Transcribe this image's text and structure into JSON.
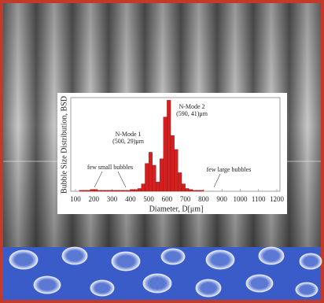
{
  "chart_data": {
    "type": "histogram",
    "xlabel": "Diameter, D[μm]",
    "ylabel": "Bubble Size Distribution, BSD",
    "annotations": [
      "N-Mode 1",
      "(500, 29)μm",
      "N-Mode 2",
      "(590, 41)μm",
      "few small bubbles",
      "few large bubbles"
    ],
    "bins": [
      100,
      120,
      140,
      160,
      180,
      200,
      220,
      240,
      260,
      280,
      300,
      320,
      340,
      360,
      380,
      400,
      420,
      440,
      460,
      480,
      500,
      520,
      540,
      560,
      580,
      600,
      620,
      640,
      660,
      680,
      700,
      720,
      740,
      760,
      780,
      800
    ],
    "values": [
      0,
      1,
      1,
      1,
      2,
      2,
      1,
      1,
      1,
      1,
      1,
      1,
      1,
      1,
      1,
      2,
      2,
      3,
      8,
      30,
      42,
      28,
      10,
      35,
      80,
      98,
      60,
      45,
      20,
      8,
      3,
      2,
      1,
      1,
      1
    ],
    "color": "#d42020",
    "xlim": [
      100,
      1200
    ],
    "xticks": [
      100,
      200,
      300,
      400,
      500,
      600,
      700,
      800,
      900,
      1000,
      1100,
      1200
    ],
    "ylim": [
      0,
      100
    ]
  }
}
